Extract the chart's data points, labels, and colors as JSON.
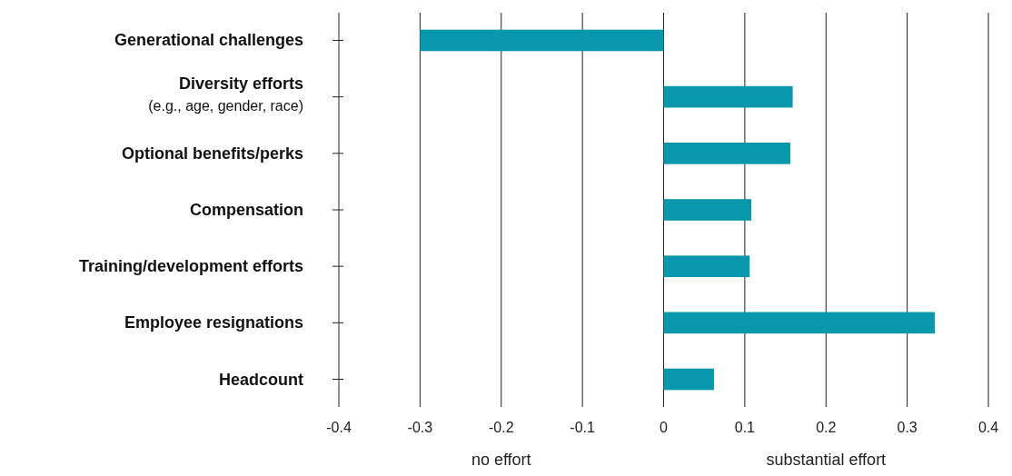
{
  "chart_data": {
    "type": "bar",
    "orientation": "horizontal",
    "categories": [
      "Generational challenges",
      "Diversity efforts\n(e.g., age, gender, race)",
      "Optional benefits/perks",
      "Compensation",
      "Training/development efforts",
      "Employee resignations",
      "Headcount"
    ],
    "values": [
      -0.3,
      0.159,
      0.156,
      0.108,
      0.106,
      0.334,
      0.062
    ],
    "color": "#0897ab",
    "xlim": [
      -0.4,
      0.4
    ],
    "xticks": [
      -0.4,
      -0.3,
      -0.2,
      -0.1,
      0,
      0.1,
      0.2,
      0.3,
      0.4
    ],
    "grid": "x",
    "annotations": [
      "no effort",
      "substantial effort"
    ]
  }
}
